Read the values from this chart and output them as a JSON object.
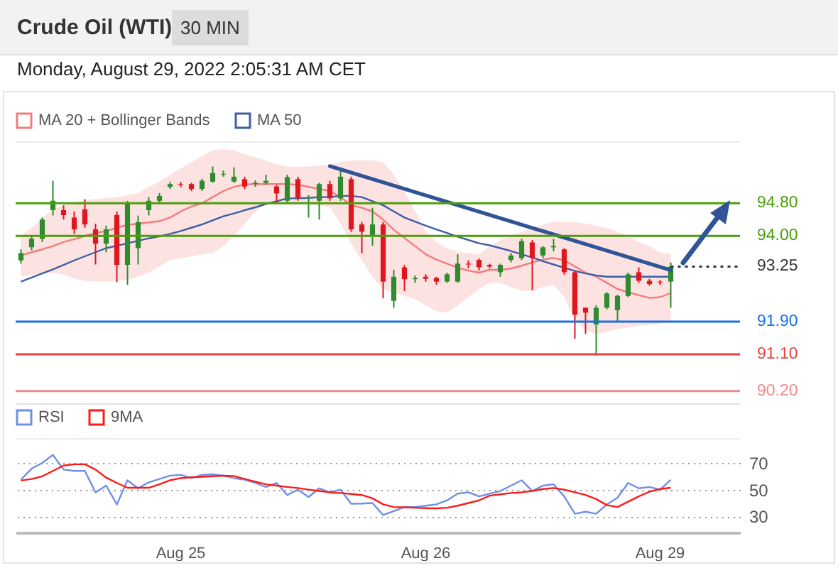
{
  "chart_data": [
    {
      "type": "candlestick",
      "title": "Crude Oil (WTI)",
      "subtitle": "30 MIN",
      "annotations": [
        "Monday, August 29, 2022 2:05:31 AM CET"
      ],
      "categories": [
        null,
        null,
        null,
        null,
        null,
        null,
        null,
        null,
        null,
        null,
        null,
        null,
        null,
        null,
        null,
        null,
        null,
        null,
        null,
        null,
        null,
        null,
        null,
        null,
        null,
        null,
        null,
        null,
        null,
        null,
        null,
        null,
        null,
        null,
        null,
        null,
        null,
        null,
        null,
        null,
        null,
        null,
        null,
        null,
        null,
        null,
        null,
        null,
        null,
        null,
        null,
        null,
        null,
        null,
        null,
        null,
        null,
        null,
        null,
        null,
        null,
        null,
        null,
        null,
        null,
        null,
        null,
        null
      ],
      "ohlc": [
        [
          93.4,
          93.67,
          93.32,
          93.58
        ],
        [
          93.72,
          94.0,
          93.65,
          93.93
        ],
        [
          93.93,
          94.45,
          93.85,
          94.4
        ],
        [
          94.63,
          95.35,
          94.5,
          94.86
        ],
        [
          94.63,
          94.75,
          94.4,
          94.51
        ],
        [
          94.45,
          94.6,
          94.05,
          94.16
        ],
        [
          94.65,
          94.9,
          94.2,
          94.28
        ],
        [
          94.16,
          94.3,
          93.3,
          93.81
        ],
        [
          93.81,
          94.25,
          93.6,
          94.16
        ],
        [
          94.51,
          94.6,
          92.87,
          93.29
        ],
        [
          93.29,
          94.86,
          92.8,
          94.8
        ],
        [
          93.7,
          94.5,
          93.3,
          94.34
        ],
        [
          94.63,
          94.95,
          94.5,
          94.86
        ],
        [
          94.86,
          95.05,
          94.8,
          94.98
        ],
        [
          95.2,
          95.32,
          95.15,
          95.27
        ],
        [
          95.27,
          95.32,
          95.2,
          95.25
        ],
        [
          95.27,
          95.3,
          95.1,
          95.15
        ],
        [
          95.15,
          95.4,
          95.1,
          95.35
        ],
        [
          95.33,
          95.7,
          95.3,
          95.54
        ],
        [
          95.5,
          95.6,
          95.45,
          95.52
        ],
        [
          95.33,
          95.68,
          95.3,
          95.45
        ],
        [
          95.39,
          95.45,
          95.15,
          95.21
        ],
        [
          95.27,
          95.36,
          95.2,
          95.3
        ],
        [
          95.3,
          95.5,
          95.25,
          95.35
        ],
        [
          95.21,
          95.25,
          94.8,
          95.04
        ],
        [
          94.86,
          95.5,
          94.8,
          95.44
        ],
        [
          95.39,
          95.45,
          94.86,
          94.92
        ],
        [
          94.92,
          95.0,
          94.45,
          94.95
        ],
        [
          94.86,
          95.3,
          94.4,
          95.27
        ],
        [
          95.27,
          95.35,
          94.86,
          94.92
        ],
        [
          94.92,
          95.68,
          94.86,
          95.45
        ],
        [
          95.39,
          95.45,
          94.1,
          94.16
        ],
        [
          94.28,
          94.34,
          93.58,
          94.1
        ],
        [
          93.99,
          94.69,
          93.76,
          94.28
        ],
        [
          94.28,
          94.34,
          92.47,
          92.88
        ],
        [
          92.41,
          93.17,
          92.24,
          93.0
        ],
        [
          93.23,
          93.29,
          92.65,
          92.94
        ],
        [
          92.94,
          93.03,
          92.85,
          92.97
        ],
        [
          93.0,
          93.06,
          92.88,
          92.95
        ],
        [
          92.97,
          93.0,
          92.8,
          92.88
        ],
        [
          92.88,
          93.1,
          92.85,
          93.06
        ],
        [
          92.88,
          93.55,
          92.85,
          93.32
        ],
        [
          93.32,
          93.4,
          93.2,
          93.3
        ],
        [
          93.41,
          93.45,
          93.15,
          93.23
        ],
        [
          93.29,
          93.32,
          93.2,
          93.25
        ],
        [
          93.11,
          93.32,
          93.0,
          93.29
        ],
        [
          93.41,
          93.58,
          93.35,
          93.52
        ],
        [
          93.46,
          93.93,
          93.41,
          93.87
        ],
        [
          93.84,
          93.9,
          92.67,
          93.46
        ],
        [
          93.52,
          93.75,
          93.46,
          93.72
        ],
        [
          93.72,
          93.93,
          93.62,
          93.75
        ],
        [
          93.67,
          93.7,
          93.05,
          93.11
        ],
        [
          93.11,
          93.15,
          91.48,
          92.07
        ],
        [
          92.24,
          92.24,
          91.6,
          92.12
        ],
        [
          91.83,
          92.3,
          91.07,
          92.24
        ],
        [
          92.24,
          92.62,
          92.2,
          92.59
        ],
        [
          92.18,
          92.56,
          91.89,
          92.53
        ],
        [
          92.53,
          93.1,
          92.5,
          93.06
        ],
        [
          93.11,
          93.23,
          92.85,
          92.9
        ],
        [
          92.9,
          92.95,
          92.78,
          92.82
        ],
        [
          92.88,
          92.92,
          92.8,
          92.86
        ],
        [
          92.88,
          93.35,
          92.24,
          93.25
        ],
        null,
        null,
        null,
        null,
        null,
        null
      ],
      "colors": [
        "#2e8b2e",
        "#2e8b2e",
        "#2e8b2e",
        "#2e8b2e",
        "#e0161e",
        "#e0161e",
        "#e0161e",
        "#e0161e",
        "#2e8b2e",
        "#e0161e",
        "#2e8b2e",
        "#2e8b2e",
        "#2e8b2e",
        "#2e8b2e",
        "#2e8b2e",
        "#e0161e",
        "#e0161e",
        "#2e8b2e",
        "#2e8b2e",
        "#2e8b2e",
        "#2e8b2e",
        "#e0161e",
        "#2e8b2e",
        "#2e8b2e",
        "#e0161e",
        "#2e8b2e",
        "#e0161e",
        "#2e8b2e",
        "#2e8b2e",
        "#e0161e",
        "#2e8b2e",
        "#e0161e",
        "#e0161e",
        "#2e8b2e",
        "#e0161e",
        "#2e8b2e",
        "#e0161e",
        "#2e8b2e",
        "#e0161e",
        "#e0161e",
        "#2e8b2e",
        "#2e8b2e",
        "#e0161e",
        "#e0161e",
        "#e0161e",
        "#2e8b2e",
        "#2e8b2e",
        "#2e8b2e",
        "#e0161e",
        "#2e8b2e",
        "#2e8b2e",
        "#e0161e",
        "#e0161e",
        "#e0161e",
        "#2e8b2e",
        "#2e8b2e",
        "#2e8b2e",
        "#2e8b2e",
        "#e0161e",
        "#e0161e",
        "#e0161e",
        "#2e8b2e",
        null,
        null,
        null,
        null,
        null,
        null
      ],
      "series": [
        {
          "name": "MA 20 + Bollinger Bands",
          "type": "line",
          "color": "#f47c7c",
          "values": [
            93.52,
            93.6,
            93.67,
            93.75,
            93.85,
            93.92,
            94.0,
            94.07,
            94.12,
            94.2,
            94.27,
            94.3,
            94.33,
            94.36,
            94.45,
            94.6,
            94.72,
            94.8,
            94.95,
            95.1,
            95.2,
            95.26,
            95.27,
            95.27,
            95.27,
            95.27,
            95.25,
            95.2,
            95.15,
            95.1,
            94.95,
            94.75,
            94.69,
            94.6,
            94.4,
            94.15,
            93.95,
            93.75,
            93.55,
            93.42,
            93.32,
            93.22,
            93.15,
            93.1,
            93.17,
            93.17,
            93.2,
            93.27,
            93.35,
            93.42,
            93.46,
            93.4,
            93.25,
            93.1,
            93.0,
            92.85,
            92.7,
            92.62,
            92.55,
            92.48,
            92.5,
            92.6,
            null,
            null,
            null,
            null,
            null,
            null
          ],
          "lower": [
            93.0,
            93.05,
            93.08,
            93.1,
            93.05,
            92.95,
            92.9,
            92.88,
            92.88,
            92.9,
            92.92,
            93.0,
            93.1,
            93.25,
            93.4,
            93.45,
            93.5,
            93.55,
            93.58,
            93.75,
            94.0,
            94.3,
            94.6,
            94.78,
            94.8,
            94.8,
            94.8,
            94.8,
            94.75,
            94.7,
            94.3,
            93.8,
            93.4,
            93.0,
            92.7,
            92.6,
            92.53,
            92.45,
            92.3,
            92.15,
            92.12,
            92.3,
            92.5,
            92.7,
            92.85,
            92.85,
            92.75,
            92.65,
            92.65,
            92.75,
            92.8,
            92.5,
            91.95,
            91.7,
            91.6,
            91.65,
            91.72,
            91.75,
            91.8,
            91.82,
            91.85,
            91.9,
            null,
            null,
            null,
            null,
            null,
            null
          ],
          "upper": [
            94.0,
            94.2,
            94.45,
            94.65,
            94.75,
            94.82,
            94.87,
            94.9,
            94.92,
            94.95,
            95.0,
            95.05,
            95.2,
            95.33,
            95.5,
            95.65,
            95.8,
            95.95,
            96.1,
            96.12,
            96.1,
            96.0,
            95.92,
            95.85,
            95.75,
            95.7,
            95.7,
            95.7,
            95.72,
            95.75,
            95.8,
            95.85,
            95.85,
            95.85,
            95.8,
            95.5,
            95.1,
            94.6,
            94.1,
            93.85,
            93.7,
            93.62,
            93.58,
            93.55,
            93.75,
            93.9,
            94.0,
            94.1,
            94.2,
            94.28,
            94.34,
            94.34,
            94.34,
            94.3,
            94.25,
            94.2,
            94.1,
            94.0,
            93.85,
            93.75,
            93.6,
            93.55,
            null,
            null,
            null,
            null,
            null,
            null
          ]
        },
        {
          "name": "MA 50",
          "type": "line",
          "color": "#3d5fa8",
          "values": [
            92.88,
            92.98,
            93.08,
            93.18,
            93.29,
            93.4,
            93.5,
            93.6,
            93.7,
            93.76,
            93.82,
            93.88,
            93.94,
            93.99,
            94.05,
            94.12,
            94.2,
            94.28,
            94.38,
            94.48,
            94.55,
            94.63,
            94.7,
            94.78,
            94.85,
            94.92,
            94.92,
            94.93,
            94.95,
            94.95,
            94.98,
            94.98,
            94.95,
            94.85,
            94.75,
            94.6,
            94.45,
            94.35,
            94.25,
            94.16,
            94.07,
            93.98,
            93.9,
            93.82,
            93.77,
            93.7,
            93.63,
            93.55,
            93.47,
            93.38,
            93.3,
            93.22,
            93.14,
            93.08,
            93.03,
            93.0,
            93.0,
            93.0,
            93.0,
            93.0,
            93.0,
            93.0,
            null,
            null,
            null,
            null,
            null,
            null
          ]
        },
        {
          "type": "line",
          "color": "#2f5597",
          "values": [
            null,
            null,
            null,
            null,
            null,
            null,
            null,
            null,
            null,
            null,
            null,
            null,
            null,
            null,
            null,
            null,
            null,
            null,
            null,
            null,
            null,
            null,
            null,
            null,
            null,
            null,
            null,
            null,
            null,
            95.71,
            null,
            null,
            null,
            null,
            null,
            null,
            null,
            null,
            null,
            null,
            null,
            null,
            null,
            null,
            null,
            null,
            null,
            null,
            null,
            null,
            null,
            null,
            null,
            null,
            null,
            null,
            null,
            null,
            null,
            null,
            null,
            93.16,
            null,
            null,
            null,
            null,
            null,
            null
          ]
        }
      ],
      "ylim": [
        89.9,
        96.3
      ],
      "tick_labels": false,
      "legend": "top left",
      "ref_lines": [
        {
          "axis": "y",
          "value": 94.8,
          "label": "94.80",
          "color": "#4c9e0b"
        },
        {
          "axis": "y",
          "value": 94.0,
          "label": "94.00",
          "color": "#4c9e0b"
        },
        {
          "axis": "y",
          "value": 93.25,
          "label": "93.25",
          "color": "#333333",
          "line_style": "dotted"
        },
        {
          "axis": "y",
          "value": 91.9,
          "label": "91.90",
          "color": "#1a6ee8"
        },
        {
          "axis": "y",
          "value": 91.1,
          "label": "91.10",
          "color": "#e8413e"
        },
        {
          "axis": "y",
          "value": 90.2,
          "label": "90.20",
          "color": "#f08a8a"
        }
      ]
    },
    {
      "type": "line",
      "categories": [
        null,
        null,
        null,
        null,
        null,
        null,
        null,
        null,
        null,
        null,
        null,
        null,
        null,
        null,
        null,
        "Aug 25",
        null,
        null,
        null,
        null,
        null,
        null,
        null,
        null,
        null,
        null,
        null,
        null,
        null,
        null,
        null,
        null,
        null,
        null,
        null,
        null,
        null,
        null,
        "Aug 26",
        null,
        null,
        null,
        null,
        null,
        null,
        null,
        null,
        null,
        null,
        null,
        null,
        null,
        null,
        null,
        null,
        null,
        null,
        null,
        null,
        null,
        "Aug 29",
        null,
        null,
        null,
        null,
        null,
        null,
        null
      ],
      "series": [
        {
          "name": "RSI",
          "color": "#6f8fe6",
          "values": [
            57.5,
            65.7,
            70,
            76,
            65,
            64,
            64,
            48,
            53,
            39,
            57,
            51,
            55.5,
            58,
            60.5,
            61,
            58.6,
            61,
            61.5,
            60.5,
            58.6,
            57.5,
            55,
            52,
            55,
            46,
            50,
            44.5,
            51,
            48,
            50,
            39.5,
            39.6,
            40,
            31,
            34,
            37,
            37,
            38,
            39,
            42,
            47,
            48,
            45,
            47,
            49,
            53,
            57,
            49,
            53,
            54,
            45,
            32,
            33.5,
            32,
            39,
            44,
            55,
            51,
            52,
            50,
            57.5,
            null,
            null,
            null,
            null,
            null,
            null
          ]
        },
        {
          "name": "9MA",
          "color": "#ff1a1a",
          "values": [
            56.8,
            58,
            60,
            64,
            68,
            69,
            69,
            65,
            59,
            55,
            51.4,
            51.4,
            51.4,
            54,
            57,
            58.6,
            59.2,
            59.6,
            60,
            60.4,
            60.2,
            58,
            56,
            54,
            53,
            52,
            51.2,
            50,
            49,
            48,
            47.5,
            46.8,
            46,
            43.5,
            39,
            37,
            36.8,
            36.5,
            36.2,
            36,
            36.5,
            38,
            40,
            42,
            45.5,
            46.5,
            47.5,
            48,
            49,
            50.5,
            51.2,
            50,
            48,
            46,
            43,
            38.5,
            37,
            41,
            45,
            48.5,
            50.5,
            51.4,
            null,
            null,
            null,
            null,
            null,
            null
          ]
        }
      ],
      "ylim": [
        18,
        88
      ],
      "yticks": [
        30,
        50,
        70
      ],
      "grid": "y",
      "legend": "top left"
    }
  ]
}
